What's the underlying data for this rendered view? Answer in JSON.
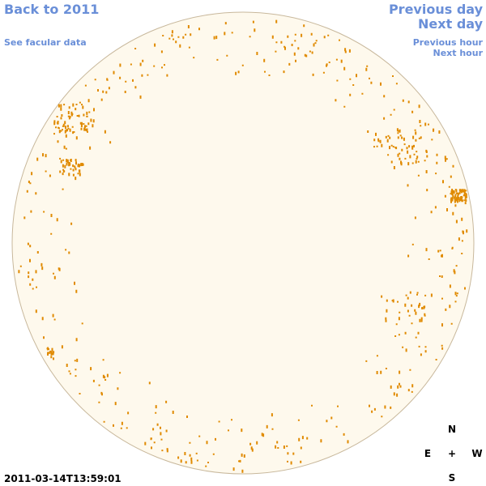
{
  "header": {
    "back": "Back to 2011",
    "facular": "See facular data",
    "previous_day": "Previous day",
    "next_day": "Next day",
    "previous_hour": "Previous hour",
    "next_hour": "Next hour"
  },
  "timestamp": "2011-03-14T13:59:01",
  "compass": {
    "north": "N",
    "east": "E",
    "center": "+",
    "west": "W",
    "south": "S"
  }
}
